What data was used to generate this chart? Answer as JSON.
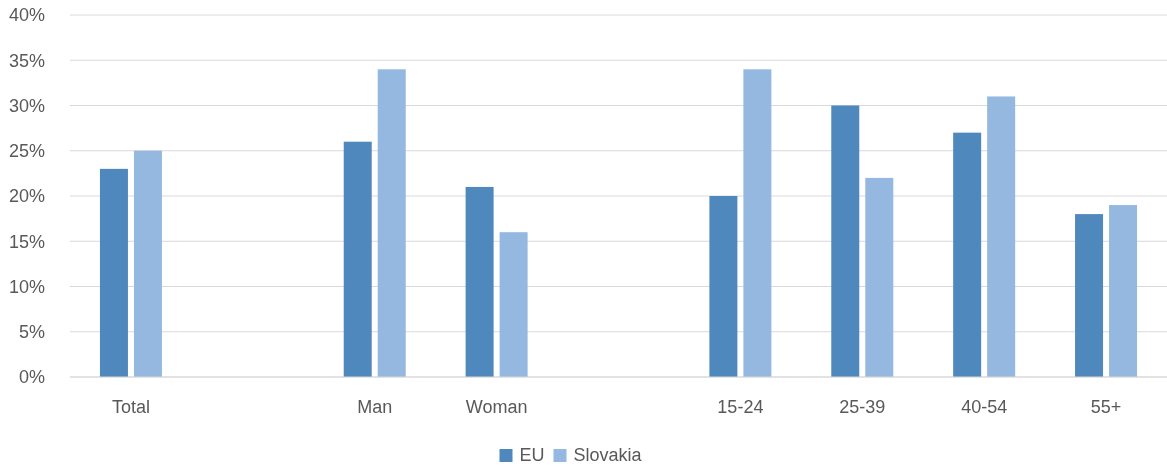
{
  "chart_data": {
    "type": "bar",
    "categories": [
      "Total",
      null,
      "Man",
      "Woman",
      null,
      "15-24",
      "25-39",
      "40-54",
      "55+"
    ],
    "series": [
      {
        "name": "EU",
        "color": "#4f88bd",
        "values": [
          23,
          null,
          26,
          21,
          null,
          20,
          30,
          27,
          18
        ]
      },
      {
        "name": "Slovakia",
        "color": "#95b8e0",
        "values": [
          25,
          null,
          34,
          16,
          null,
          34,
          22,
          31,
          19
        ]
      }
    ],
    "ylim": [
      0,
      40
    ],
    "yticks": [
      {
        "value": 0,
        "label": "0%"
      },
      {
        "value": 5,
        "label": "5%"
      },
      {
        "value": 10,
        "label": "10%"
      },
      {
        "value": 15,
        "label": "15%"
      },
      {
        "value": 20,
        "label": "20%"
      },
      {
        "value": 25,
        "label": "25%"
      },
      {
        "value": 30,
        "label": "30%"
      },
      {
        "value": 35,
        "label": "35%"
      },
      {
        "value": 40,
        "label": "40%"
      }
    ],
    "grid": "y",
    "legend": "bottom"
  }
}
